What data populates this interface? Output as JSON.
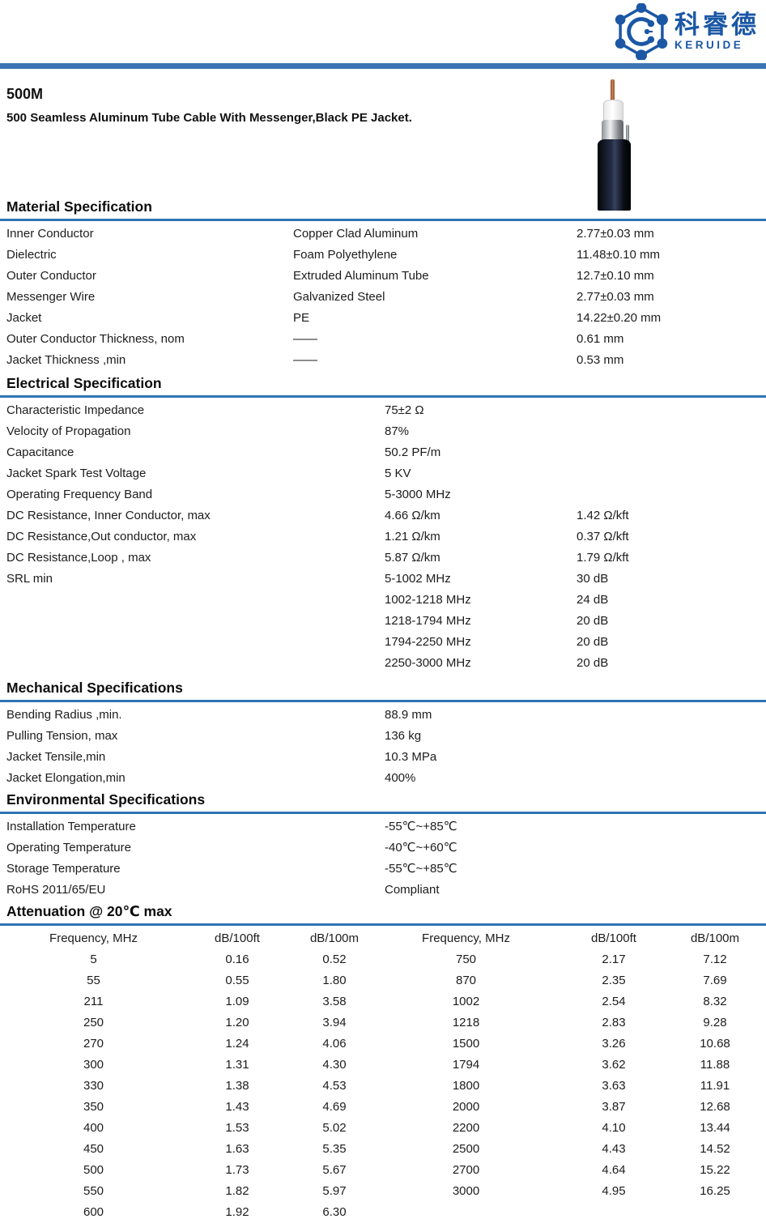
{
  "header": {
    "logo_cn": "科睿德",
    "logo_en": "KERUIDE",
    "brand_color": "#1b57a5",
    "bar_color": "#3c76b2"
  },
  "title": "500M",
  "subtitle": "500 Seamless Aluminum Tube Cable With Messenger,Black PE Jacket.",
  "sections": {
    "material": {
      "heading": "Material Specification",
      "rows": [
        [
          "Inner Conductor",
          "Copper Clad Aluminum",
          "2.77±0.03 mm"
        ],
        [
          "Dielectric",
          "Foam Polyethylene",
          "11.48±0.10 mm"
        ],
        [
          "Outer Conductor",
          "Extruded Aluminum Tube",
          "12.7±0.10 mm"
        ],
        [
          "Messenger Wire",
          "Galvanized Steel",
          "2.77±0.03 mm"
        ],
        [
          "Jacket",
          "PE",
          "14.22±0.20 mm"
        ],
        [
          "Outer Conductor Thickness, nom",
          "——",
          "0.61 mm"
        ],
        [
          "Jacket Thickness ,min",
          "——",
          "0.53 mm"
        ]
      ]
    },
    "electrical": {
      "heading": "Electrical Specification",
      "rows": [
        [
          "Characteristic Impedance",
          "75±2 Ω",
          ""
        ],
        [
          "Velocity of Propagation",
          "87%",
          ""
        ],
        [
          "Capacitance",
          "50.2 PF/m",
          ""
        ],
        [
          "Jacket Spark Test Voltage",
          "5 KV",
          ""
        ],
        [
          "Operating Frequency Band",
          "5-3000 MHz",
          ""
        ],
        [
          "DC Resistance, Inner Conductor, max",
          "4.66 Ω/km",
          "1.42 Ω/kft"
        ],
        [
          "DC Resistance,Out conductor, max",
          "1.21 Ω/km",
          "0.37 Ω/kft"
        ],
        [
          "DC Resistance,Loop , max",
          "5.87 Ω/km",
          "1.79 Ω/kft"
        ],
        [
          "SRL min",
          "5-1002 MHz",
          "30 dB"
        ],
        [
          "",
          "1002-1218 MHz",
          "24 dB"
        ],
        [
          "",
          "1218-1794 MHz",
          "20 dB"
        ],
        [
          "",
          "1794-2250 MHz",
          "20 dB"
        ],
        [
          "",
          "2250-3000 MHz",
          "20 dB"
        ]
      ]
    },
    "mechanical": {
      "heading": "Mechanical Specifications",
      "rows": [
        [
          "Bending Radius ,min.",
          "88.9 mm"
        ],
        [
          "Pulling Tension, max",
          "136 kg"
        ],
        [
          "Jacket Tensile,min",
          "10.3 MPa"
        ],
        [
          "Jacket Elongation,min",
          "400%"
        ]
      ]
    },
    "environmental": {
      "heading": "Environmental Specifications",
      "rows": [
        [
          "Installation Temperature",
          "-55℃~+85℃"
        ],
        [
          "Operating Temperature",
          "-40℃~+60℃"
        ],
        [
          "Storage Temperature",
          "-55℃~+85℃"
        ],
        [
          "RoHS 2011/65/EU",
          "Compliant"
        ]
      ]
    },
    "attenuation": {
      "heading": "Attenuation @ 20℃ max",
      "header": [
        [
          "Frequency, MHz",
          "dB/100ft",
          "dB/100m",
          "Frequency, MHz",
          "dB/100ft",
          "dB/100m"
        ]
      ],
      "rows": [
        [
          "5",
          "0.16",
          "0.52",
          "750",
          "2.17",
          "7.12"
        ],
        [
          "55",
          "0.55",
          "1.80",
          "870",
          "2.35",
          "7.69"
        ],
        [
          "211",
          "1.09",
          "3.58",
          "1002",
          "2.54",
          "8.32"
        ],
        [
          "250",
          "1.20",
          "3.94",
          "1218",
          "2.83",
          "9.28"
        ],
        [
          "270",
          "1.24",
          "4.06",
          "1500",
          "3.26",
          "10.68"
        ],
        [
          "300",
          "1.31",
          "4.30",
          "1794",
          "3.62",
          "11.88"
        ],
        [
          "330",
          "1.38",
          "4.53",
          "1800",
          "3.63",
          "11.91"
        ],
        [
          "350",
          "1.43",
          "4.69",
          "2000",
          "3.87",
          "12.68"
        ],
        [
          "400",
          "1.53",
          "5.02",
          "2200",
          "4.10",
          "13.44"
        ],
        [
          "450",
          "1.63",
          "5.35",
          "2500",
          "4.43",
          "14.52"
        ],
        [
          "500",
          "1.73",
          "5.67",
          "2700",
          "4.64",
          "15.22"
        ],
        [
          "550",
          "1.82",
          "5.97",
          "3000",
          "4.95",
          "16.25"
        ],
        [
          "600",
          "1.92",
          "6.30",
          "",
          "",
          ""
        ]
      ]
    }
  }
}
